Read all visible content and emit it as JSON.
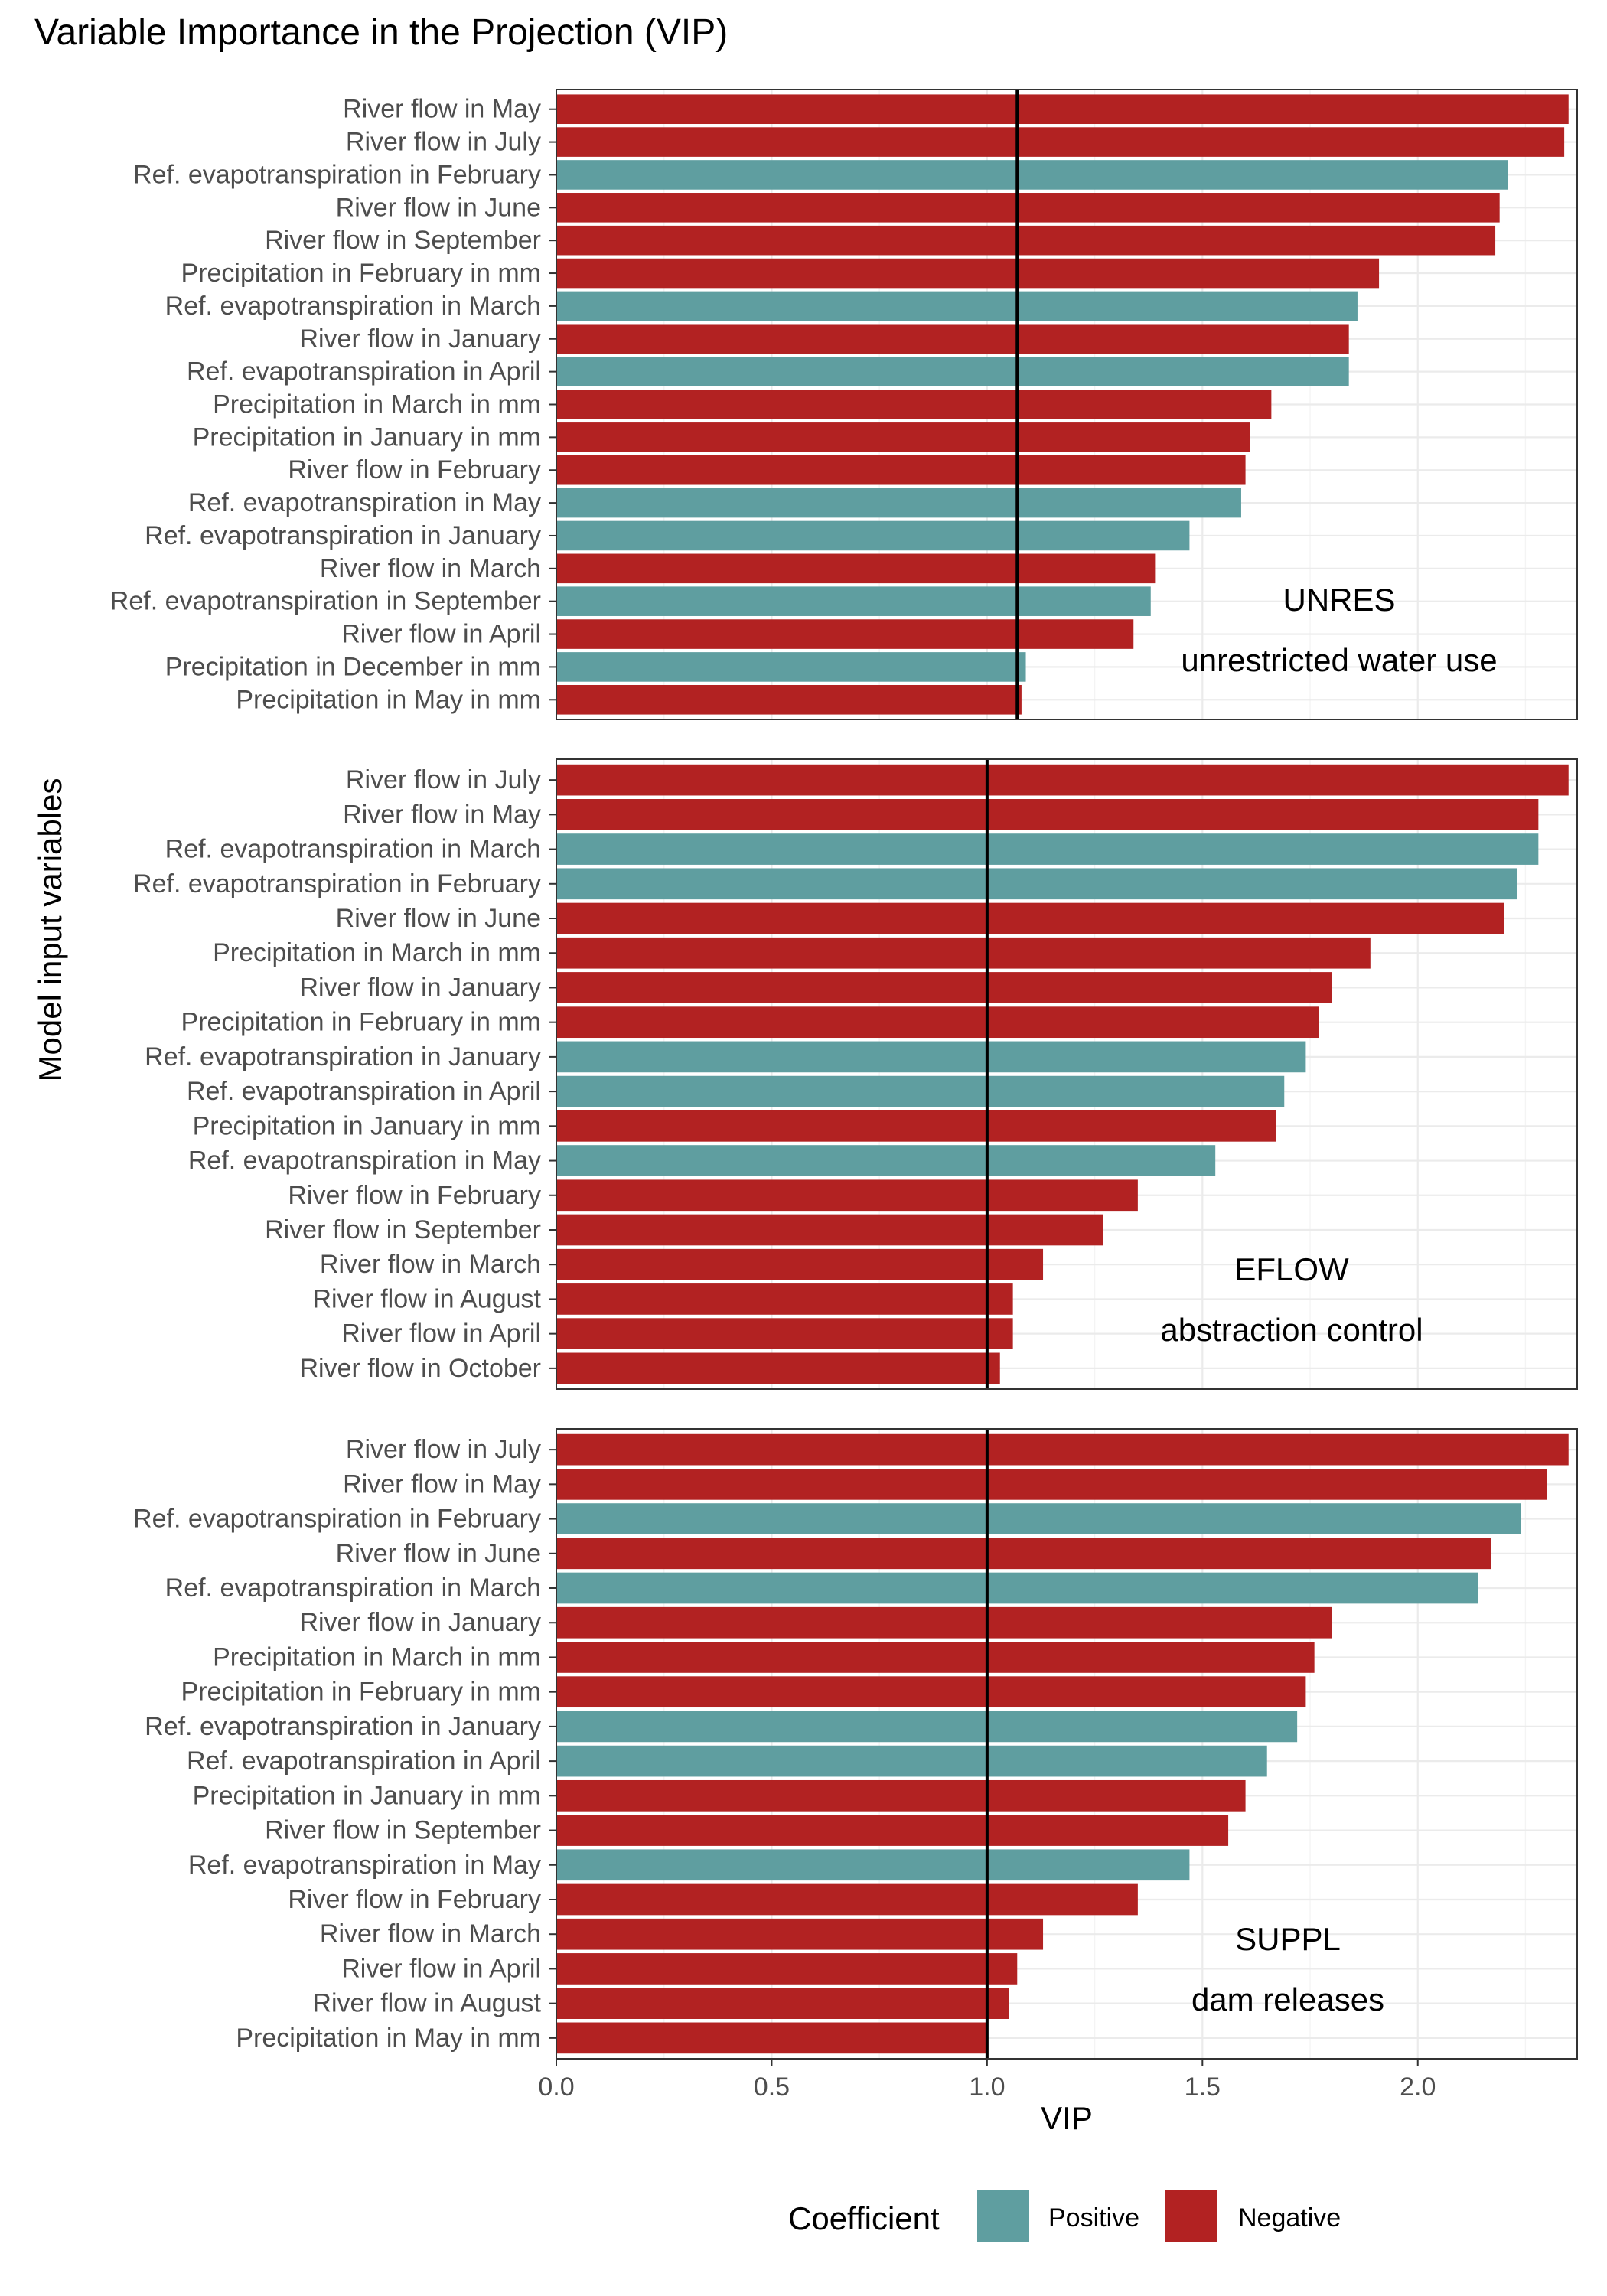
{
  "chart_data": {
    "type": "bar",
    "orientation": "horizontal",
    "title": "Variable Importance in the Projection (VIP)",
    "xlabel": "VIP",
    "ylabel": "Model input variables",
    "xlim": [
      0,
      2.37
    ],
    "xticks": [
      "0.0",
      "0.5",
      "1.0",
      "1.5",
      "2.0"
    ],
    "grid": true,
    "legend": {
      "title": "Coefficient",
      "position": "bottom",
      "items": [
        {
          "label": "Positive",
          "color": "#5f9ea0"
        },
        {
          "label": "Negative",
          "color": "#b22222"
        }
      ]
    },
    "colors": {
      "Positive": "#5f9ea0",
      "Negative": "#b22222"
    },
    "panels": [
      {
        "label": "UNRES",
        "sublabel": "unrestricted water use",
        "reference_line": 1.07,
        "bars": [
          {
            "variable": "River flow in May",
            "vip": 2.35,
            "coefficient": "Negative"
          },
          {
            "variable": "River flow in July",
            "vip": 2.34,
            "coefficient": "Negative"
          },
          {
            "variable": "Ref. evapotranspiration in February",
            "vip": 2.21,
            "coefficient": "Positive"
          },
          {
            "variable": "River flow in June",
            "vip": 2.19,
            "coefficient": "Negative"
          },
          {
            "variable": "River flow in September",
            "vip": 2.18,
            "coefficient": "Negative"
          },
          {
            "variable": "Precipitation in February in mm",
            "vip": 1.91,
            "coefficient": "Negative"
          },
          {
            "variable": "Ref. evapotranspiration in March",
            "vip": 1.86,
            "coefficient": "Positive"
          },
          {
            "variable": "River flow in January",
            "vip": 1.84,
            "coefficient": "Negative"
          },
          {
            "variable": "Ref. evapotranspiration in April",
            "vip": 1.84,
            "coefficient": "Positive"
          },
          {
            "variable": "Precipitation in March in mm",
            "vip": 1.66,
            "coefficient": "Negative"
          },
          {
            "variable": "Precipitation in January in mm",
            "vip": 1.61,
            "coefficient": "Negative"
          },
          {
            "variable": "River flow in February",
            "vip": 1.6,
            "coefficient": "Negative"
          },
          {
            "variable": "Ref. evapotranspiration in May",
            "vip": 1.59,
            "coefficient": "Positive"
          },
          {
            "variable": "Ref. evapotranspiration in January",
            "vip": 1.47,
            "coefficient": "Positive"
          },
          {
            "variable": "River flow in March",
            "vip": 1.39,
            "coefficient": "Negative"
          },
          {
            "variable": "Ref. evapotranspiration in September",
            "vip": 1.38,
            "coefficient": "Positive"
          },
          {
            "variable": "River flow in April",
            "vip": 1.34,
            "coefficient": "Negative"
          },
          {
            "variable": "Precipitation in December in mm",
            "vip": 1.09,
            "coefficient": "Positive"
          },
          {
            "variable": "Precipitation in May in mm",
            "vip": 1.08,
            "coefficient": "Negative"
          }
        ]
      },
      {
        "label": "EFLOW",
        "sublabel": "abstraction control",
        "reference_line": 1.0,
        "bars": [
          {
            "variable": "River flow in July",
            "vip": 2.35,
            "coefficient": "Negative"
          },
          {
            "variable": "River flow in May",
            "vip": 2.28,
            "coefficient": "Negative"
          },
          {
            "variable": "Ref. evapotranspiration in March",
            "vip": 2.28,
            "coefficient": "Positive"
          },
          {
            "variable": "Ref. evapotranspiration in February",
            "vip": 2.23,
            "coefficient": "Positive"
          },
          {
            "variable": "River flow in June",
            "vip": 2.2,
            "coefficient": "Negative"
          },
          {
            "variable": "Precipitation in March in mm",
            "vip": 1.89,
            "coefficient": "Negative"
          },
          {
            "variable": "River flow in January",
            "vip": 1.8,
            "coefficient": "Negative"
          },
          {
            "variable": "Precipitation in February in mm",
            "vip": 1.77,
            "coefficient": "Negative"
          },
          {
            "variable": "Ref. evapotranspiration in January",
            "vip": 1.74,
            "coefficient": "Positive"
          },
          {
            "variable": "Ref. evapotranspiration in April",
            "vip": 1.69,
            "coefficient": "Positive"
          },
          {
            "variable": "Precipitation in January in mm",
            "vip": 1.67,
            "coefficient": "Negative"
          },
          {
            "variable": "Ref. evapotranspiration in May",
            "vip": 1.53,
            "coefficient": "Positive"
          },
          {
            "variable": "River flow in February",
            "vip": 1.35,
            "coefficient": "Negative"
          },
          {
            "variable": "River flow in September",
            "vip": 1.27,
            "coefficient": "Negative"
          },
          {
            "variable": "River flow in March",
            "vip": 1.13,
            "coefficient": "Negative"
          },
          {
            "variable": "River flow in August",
            "vip": 1.06,
            "coefficient": "Negative"
          },
          {
            "variable": "River flow in April",
            "vip": 1.06,
            "coefficient": "Negative"
          },
          {
            "variable": "River flow in October",
            "vip": 1.03,
            "coefficient": "Negative"
          }
        ]
      },
      {
        "label": "SUPPL",
        "sublabel": "dam releases",
        "reference_line": 1.0,
        "bars": [
          {
            "variable": "River flow in July",
            "vip": 2.35,
            "coefficient": "Negative"
          },
          {
            "variable": "River flow in May",
            "vip": 2.3,
            "coefficient": "Negative"
          },
          {
            "variable": "Ref. evapotranspiration in February",
            "vip": 2.24,
            "coefficient": "Positive"
          },
          {
            "variable": "River flow in June",
            "vip": 2.17,
            "coefficient": "Negative"
          },
          {
            "variable": "Ref. evapotranspiration in March",
            "vip": 2.14,
            "coefficient": "Positive"
          },
          {
            "variable": "River flow in January",
            "vip": 1.8,
            "coefficient": "Negative"
          },
          {
            "variable": "Precipitation in March in mm",
            "vip": 1.76,
            "coefficient": "Negative"
          },
          {
            "variable": "Precipitation in February in mm",
            "vip": 1.74,
            "coefficient": "Negative"
          },
          {
            "variable": "Ref. evapotranspiration in January",
            "vip": 1.72,
            "coefficient": "Positive"
          },
          {
            "variable": "Ref. evapotranspiration in April",
            "vip": 1.65,
            "coefficient": "Positive"
          },
          {
            "variable": "Precipitation in January in mm",
            "vip": 1.6,
            "coefficient": "Negative"
          },
          {
            "variable": "River flow in September",
            "vip": 1.56,
            "coefficient": "Negative"
          },
          {
            "variable": "Ref. evapotranspiration in May",
            "vip": 1.47,
            "coefficient": "Positive"
          },
          {
            "variable": "River flow in February",
            "vip": 1.35,
            "coefficient": "Negative"
          },
          {
            "variable": "River flow in March",
            "vip": 1.13,
            "coefficient": "Negative"
          },
          {
            "variable": "River flow in April",
            "vip": 1.07,
            "coefficient": "Negative"
          },
          {
            "variable": "River flow in August",
            "vip": 1.05,
            "coefficient": "Negative"
          },
          {
            "variable": "Precipitation in May in mm",
            "vip": 1.0,
            "coefficient": "Negative"
          }
        ]
      }
    ]
  }
}
